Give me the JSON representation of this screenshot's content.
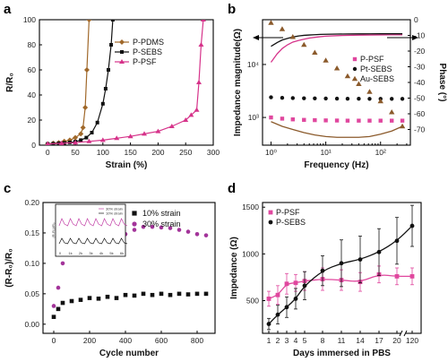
{
  "chart_data": [
    {
      "panel": "a",
      "type": "line",
      "xlabel": "Strain (%)",
      "ylabel": "R/R₀",
      "xlim": [
        -15,
        300
      ],
      "ylim": [
        0,
        100
      ],
      "xticks": [
        "0",
        "50",
        "100",
        "150",
        "200",
        "250",
        "300"
      ],
      "yticks": [
        "0",
        "20",
        "40",
        "60",
        "80",
        "100"
      ],
      "legend_position": "right",
      "series": [
        {
          "name": "P-PDMS",
          "color": "#a0682a",
          "marker": "diamond",
          "x": [
            0,
            10,
            20,
            30,
            40,
            50,
            60,
            64,
            68,
            71,
            75
          ],
          "y": [
            1,
            1.5,
            2,
            3,
            4,
            6,
            9,
            14,
            30,
            60,
            100
          ]
        },
        {
          "name": "P-SEBS",
          "color": "#111111",
          "marker": "square",
          "x": [
            0,
            10,
            20,
            30,
            40,
            50,
            60,
            70,
            80,
            90,
            100,
            105,
            110,
            115,
            118
          ],
          "y": [
            1,
            1.2,
            1.5,
            1.8,
            2.2,
            2.8,
            4,
            6,
            10,
            18,
            33,
            45,
            60,
            80,
            100
          ]
        },
        {
          "name": "P-PSF",
          "color": "#d6338a",
          "marker": "triangle",
          "x": [
            0,
            25,
            50,
            75,
            100,
            125,
            150,
            175,
            200,
            225,
            250,
            260,
            270,
            274,
            278,
            282
          ],
          "y": [
            1,
            1.5,
            2,
            3,
            4,
            5.5,
            7,
            9,
            11,
            15,
            20,
            24,
            28,
            50,
            80,
            100
          ]
        }
      ]
    },
    {
      "panel": "b",
      "type": "line",
      "xlabel": "Frequency (Hz)",
      "ylabel": "Impedance magnitude(Ω)",
      "ylabel_right": "Phase (°)",
      "xscale": "log",
      "yscale": "log",
      "xlim": [
        0.7,
        350
      ],
      "ylim": [
        300,
        70000
      ],
      "phase_lim": [
        -80,
        0
      ],
      "xticks": [
        "10⁰",
        "10¹",
        "10²"
      ],
      "yticks": [
        "10³",
        "10⁴"
      ],
      "phase_ticks": [
        "-70",
        "-60",
        "-50",
        "-40",
        "-30",
        "-20",
        "-10",
        "0"
      ],
      "legend_position": "middle-right",
      "series": [
        {
          "name": "P-PSF",
          "color": "#e0479e",
          "marker": "square",
          "axis": "impedance",
          "x": [
            1,
            1.6,
            2.5,
            4,
            6.3,
            10,
            16,
            25,
            40,
            63,
            100,
            160,
            250
          ],
          "y": [
            1000,
            950,
            920,
            900,
            890,
            880,
            875,
            870,
            870,
            870,
            870,
            870,
            870
          ]
        },
        {
          "name": "P-PSF",
          "color": "#d6338a",
          "axis": "impedance",
          "line": true,
          "x": [
            1,
            1.3,
            1.6,
            2,
            2.5,
            3.2,
            4,
            5,
            6.3,
            8,
            10,
            16,
            25,
            40,
            63,
            100,
            160,
            250
          ],
          "y": [
            11000,
            16000,
            20000,
            23500,
            26500,
            28500,
            30000,
            31500,
            32500,
            33500,
            34200,
            35000,
            35500,
            35800,
            36000,
            36200,
            36300,
            36400
          ]
        },
        {
          "name": "Pt-SEBS",
          "color": "#111111",
          "marker": "circle",
          "axis": "impedance",
          "x": [
            1,
            1.6,
            2.5,
            4,
            6.3,
            10,
            16,
            25,
            40,
            63,
            100,
            160,
            250
          ],
          "y": [
            2400,
            2350,
            2320,
            2300,
            2290,
            2280,
            2270,
            2260,
            2255,
            2250,
            2250,
            2250,
            2250
          ]
        },
        {
          "name": "Pt-SEBS",
          "color": "#111111",
          "axis": "impedance",
          "line": true,
          "x": [
            1,
            1.3,
            1.6,
            2,
            2.5,
            3.2,
            4,
            5,
            6.3,
            8,
            10,
            16,
            25,
            40,
            63,
            100,
            160,
            250
          ],
          "y": [
            22000,
            26000,
            29000,
            31000,
            33000,
            34500,
            35500,
            36000,
            36500,
            37000,
            37200,
            37500,
            37700,
            37800,
            37900,
            38000,
            38000,
            38000
          ]
        },
        {
          "name": "Au-SEBS",
          "color": "#8b5a2b",
          "marker": "triangle",
          "axis": "phase",
          "x": [
            1,
            1.6,
            2.5,
            4,
            6.3,
            10,
            16,
            25,
            40,
            63,
            100,
            160,
            250
          ],
          "y": [
            -2,
            -6,
            -11,
            -16,
            -21,
            -26,
            -31,
            -36,
            -41,
            -46,
            -52,
            -59,
            -68
          ]
        },
        {
          "name": "Au-SEBS",
          "color": "#8b5a2b",
          "axis": "phase",
          "line": true,
          "x": [
            1,
            1.6,
            2.5,
            4,
            6.3,
            10,
            16,
            25,
            40,
            63,
            100,
            160,
            250
          ],
          "y": [
            -65,
            -68,
            -70,
            -72,
            -73.5,
            -74.5,
            -75,
            -75,
            -75,
            -74.5,
            -73,
            -71,
            -68
          ]
        }
      ]
    },
    {
      "panel": "c",
      "type": "scatter",
      "xlabel": "Cycle number",
      "ylabel": "(R-R₀)/R₀",
      "xlim": [
        -60,
        900
      ],
      "ylim": [
        -0.015,
        0.2
      ],
      "xticks": [
        "0",
        "200",
        "400",
        "600",
        "800"
      ],
      "yticks": [
        "0.00",
        "0.05",
        "0.10",
        "0.15",
        "0.20"
      ],
      "legend_position": "top-right",
      "series": [
        {
          "name": "10% strain",
          "color": "#111111",
          "marker": "square",
          "x": [
            0,
            25,
            50,
            100,
            150,
            200,
            250,
            300,
            350,
            400,
            450,
            500,
            550,
            600,
            650,
            700,
            750,
            800,
            850
          ],
          "y": [
            0.012,
            0.025,
            0.035,
            0.038,
            0.04,
            0.043,
            0.042,
            0.045,
            0.043,
            0.048,
            0.047,
            0.05,
            0.048,
            0.05,
            0.048,
            0.05,
            0.049,
            0.05,
            0.05
          ]
        },
        {
          "name": "30% strain",
          "color": "#a3349a",
          "marker": "circle",
          "x": [
            0,
            25,
            50,
            100,
            150,
            200,
            250,
            300,
            350,
            400,
            450,
            500,
            550,
            600,
            650,
            700,
            750,
            800,
            850
          ],
          "y": [
            0.03,
            0.06,
            0.1,
            0.125,
            0.13,
            0.132,
            0.138,
            0.14,
            0.142,
            0.148,
            0.155,
            0.16,
            0.16,
            0.159,
            0.158,
            0.155,
            0.152,
            0.148,
            0.146
          ]
        }
      ],
      "inset": {
        "ylabel": "(R-R₀)/R₀",
        "legend": [
          "30% strain",
          "10% strain"
        ],
        "xticks": [
          "0",
          "1k",
          "2k",
          "3k",
          "4k",
          "5k",
          "6k"
        ]
      }
    },
    {
      "panel": "d",
      "type": "scatter",
      "xlabel": "Days immersed in PBS",
      "ylabel": "Impedance (Ω)",
      "ylim": [
        150,
        1550
      ],
      "xticks": [
        "1",
        "2",
        "3",
        "4",
        "5",
        "8",
        "11",
        "14",
        "17",
        "20",
        "120"
      ],
      "yticks": [
        "500",
        "1000",
        "1500"
      ],
      "legend_position": "top-left",
      "series": [
        {
          "name": "P-PSF",
          "color": "#e0479e",
          "marker": "square",
          "x": [
            "1",
            "2",
            "3",
            "4",
            "5",
            "8",
            "11",
            "14",
            "17",
            "20",
            "120"
          ],
          "y": [
            520,
            560,
            680,
            690,
            710,
            730,
            720,
            700,
            780,
            760,
            760
          ],
          "err": [
            80,
            100,
            110,
            90,
            100,
            120,
            110,
            100,
            90,
            90,
            90
          ]
        },
        {
          "name": "P-SEBS",
          "color": "#111111",
          "marker": "circle",
          "x": [
            "1",
            "2",
            "3",
            "4",
            "5",
            "8",
            "11",
            "14",
            "17",
            "20",
            "120"
          ],
          "y": [
            250,
            350,
            430,
            520,
            660,
            820,
            900,
            940,
            1020,
            1140,
            1300
          ],
          "err": [
            60,
            100,
            110,
            110,
            150,
            160,
            250,
            250,
            250,
            250,
            220
          ]
        }
      ]
    }
  ]
}
